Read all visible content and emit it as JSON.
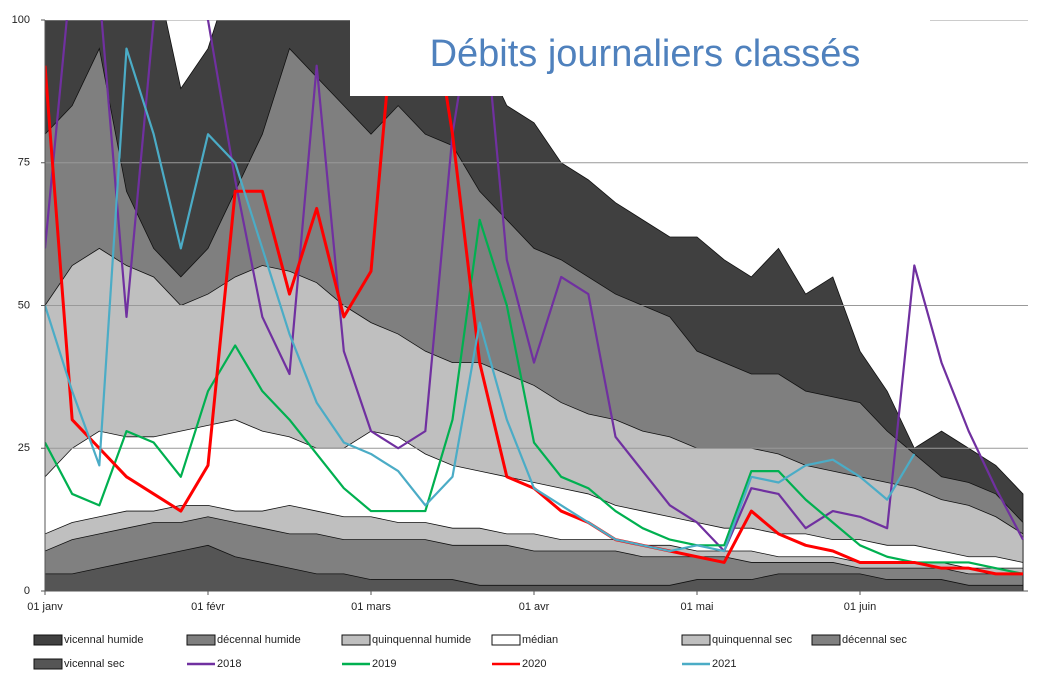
{
  "chart_data": {
    "type": "area",
    "title": "Débits journaliers classés",
    "categories": [
      "01 janv",
      null,
      null,
      null,
      null,
      null,
      "01 févr",
      null,
      null,
      null,
      null,
      null,
      "01 mars",
      null,
      null,
      null,
      null,
      null,
      "01 avr",
      null,
      null,
      null,
      null,
      null,
      "01 mai",
      null,
      null,
      null,
      null,
      null,
      "01 juin",
      null,
      null,
      null,
      null,
      null,
      null
    ],
    "ylim": [
      0,
      100
    ],
    "yticks": [
      0,
      25,
      50,
      75,
      100
    ],
    "grid": true,
    "legend": "bottom",
    "series": [
      {
        "name": "vicennal humide",
        "type": "area",
        "color": "#404040",
        "values": [
          110,
          110,
          110,
          110,
          110,
          88,
          95,
          110,
          110,
          110,
          110,
          110,
          110,
          110,
          110,
          110,
          95,
          85,
          82,
          75,
          72,
          68,
          65,
          62,
          62,
          58,
          55,
          60,
          52,
          55,
          42,
          35,
          25,
          28,
          25,
          22,
          17
        ]
      },
      {
        "name": "décennal humide",
        "type": "area",
        "color": "#7f7f7f",
        "values": [
          80,
          85,
          95,
          70,
          60,
          55,
          60,
          70,
          80,
          95,
          90,
          85,
          80,
          85,
          80,
          78,
          70,
          65,
          60,
          58,
          55,
          52,
          50,
          48,
          42,
          40,
          38,
          38,
          35,
          34,
          33,
          28,
          24,
          20,
          19,
          17,
          12
        ]
      },
      {
        "name": "quinquennal humide",
        "type": "area",
        "color": "#bfbfbf",
        "values": [
          50,
          57,
          60,
          57,
          55,
          50,
          52,
          55,
          57,
          56,
          54,
          50,
          47,
          45,
          42,
          40,
          40,
          38,
          36,
          33,
          31,
          30,
          28,
          27,
          25,
          25,
          25,
          24,
          22,
          21,
          20,
          19,
          18,
          16,
          15,
          13,
          10
        ]
      },
      {
        "name": "médian",
        "type": "area",
        "color": "#ffffff",
        "values": [
          20,
          25,
          28,
          27,
          27,
          28,
          29,
          30,
          28,
          27,
          25,
          25,
          28,
          27,
          24,
          22,
          21,
          20,
          19,
          18,
          17,
          15,
          14,
          13,
          12,
          11,
          11,
          10,
          10,
          9,
          9,
          8,
          8,
          7,
          6,
          6,
          5
        ]
      },
      {
        "name": "quinquennal sec",
        "type": "area",
        "color": "#bfbfbf",
        "values": [
          10,
          12,
          13,
          14,
          14,
          15,
          15,
          14,
          14,
          15,
          14,
          13,
          13,
          12,
          12,
          11,
          11,
          10,
          10,
          9,
          9,
          9,
          8,
          8,
          7,
          7,
          7,
          6,
          6,
          6,
          5,
          5,
          5,
          5,
          4,
          4,
          4
        ]
      },
      {
        "name": "décennal sec",
        "type": "area",
        "color": "#808080",
        "values": [
          7,
          9,
          10,
          11,
          12,
          12,
          13,
          12,
          11,
          10,
          10,
          9,
          9,
          9,
          9,
          8,
          8,
          8,
          7,
          7,
          7,
          7,
          6,
          6,
          6,
          6,
          5,
          5,
          5,
          5,
          4,
          4,
          4,
          4,
          3,
          3,
          3
        ]
      },
      {
        "name": "vicennal sec",
        "type": "area",
        "color": "#555555",
        "values": [
          3,
          3,
          4,
          5,
          6,
          7,
          8,
          6,
          5,
          4,
          3,
          3,
          2,
          2,
          2,
          2,
          1,
          1,
          1,
          1,
          1,
          1,
          1,
          1,
          2,
          2,
          2,
          3,
          3,
          3,
          3,
          2,
          2,
          2,
          1,
          1,
          1
        ]
      },
      {
        "name": "2018",
        "type": "line",
        "color": "#7030a0",
        "values": [
          60,
          110,
          105,
          48,
          100,
          105,
          100,
          72,
          48,
          38,
          92,
          42,
          28,
          25,
          28,
          80,
          110,
          58,
          40,
          55,
          52,
          27,
          21,
          15,
          12,
          7,
          18,
          17,
          11,
          14,
          13,
          11,
          57,
          40,
          28,
          18,
          9
        ]
      },
      {
        "name": "2019",
        "type": "line",
        "color": "#00b050",
        "values": [
          26,
          17,
          15,
          28,
          26,
          20,
          35,
          43,
          35,
          30,
          24,
          18,
          14,
          14,
          14,
          30,
          65,
          50,
          26,
          20,
          18,
          14,
          11,
          9,
          8,
          8,
          21,
          21,
          16,
          12,
          8,
          6,
          5,
          5,
          5,
          4,
          3
        ]
      },
      {
        "name": "2020",
        "type": "line",
        "color": "#ff0000",
        "values": [
          92,
          30,
          25,
          20,
          17,
          14,
          22,
          70,
          70,
          52,
          67,
          48,
          56,
          110,
          110,
          80,
          40,
          20,
          18,
          14,
          12,
          9,
          8,
          7,
          6,
          5,
          14,
          10,
          8,
          7,
          5,
          5,
          5,
          4,
          4,
          3,
          3
        ]
      },
      {
        "name": "2021",
        "type": "line",
        "color": "#4bacc6",
        "values": [
          50,
          35,
          22,
          95,
          80,
          60,
          80,
          75,
          60,
          45,
          33,
          26,
          24,
          21,
          15,
          20,
          47,
          30,
          18,
          15,
          12,
          9,
          8,
          7,
          8,
          7,
          20,
          19,
          22,
          23,
          20,
          16,
          24,
          null,
          null,
          null,
          null
        ]
      }
    ]
  }
}
